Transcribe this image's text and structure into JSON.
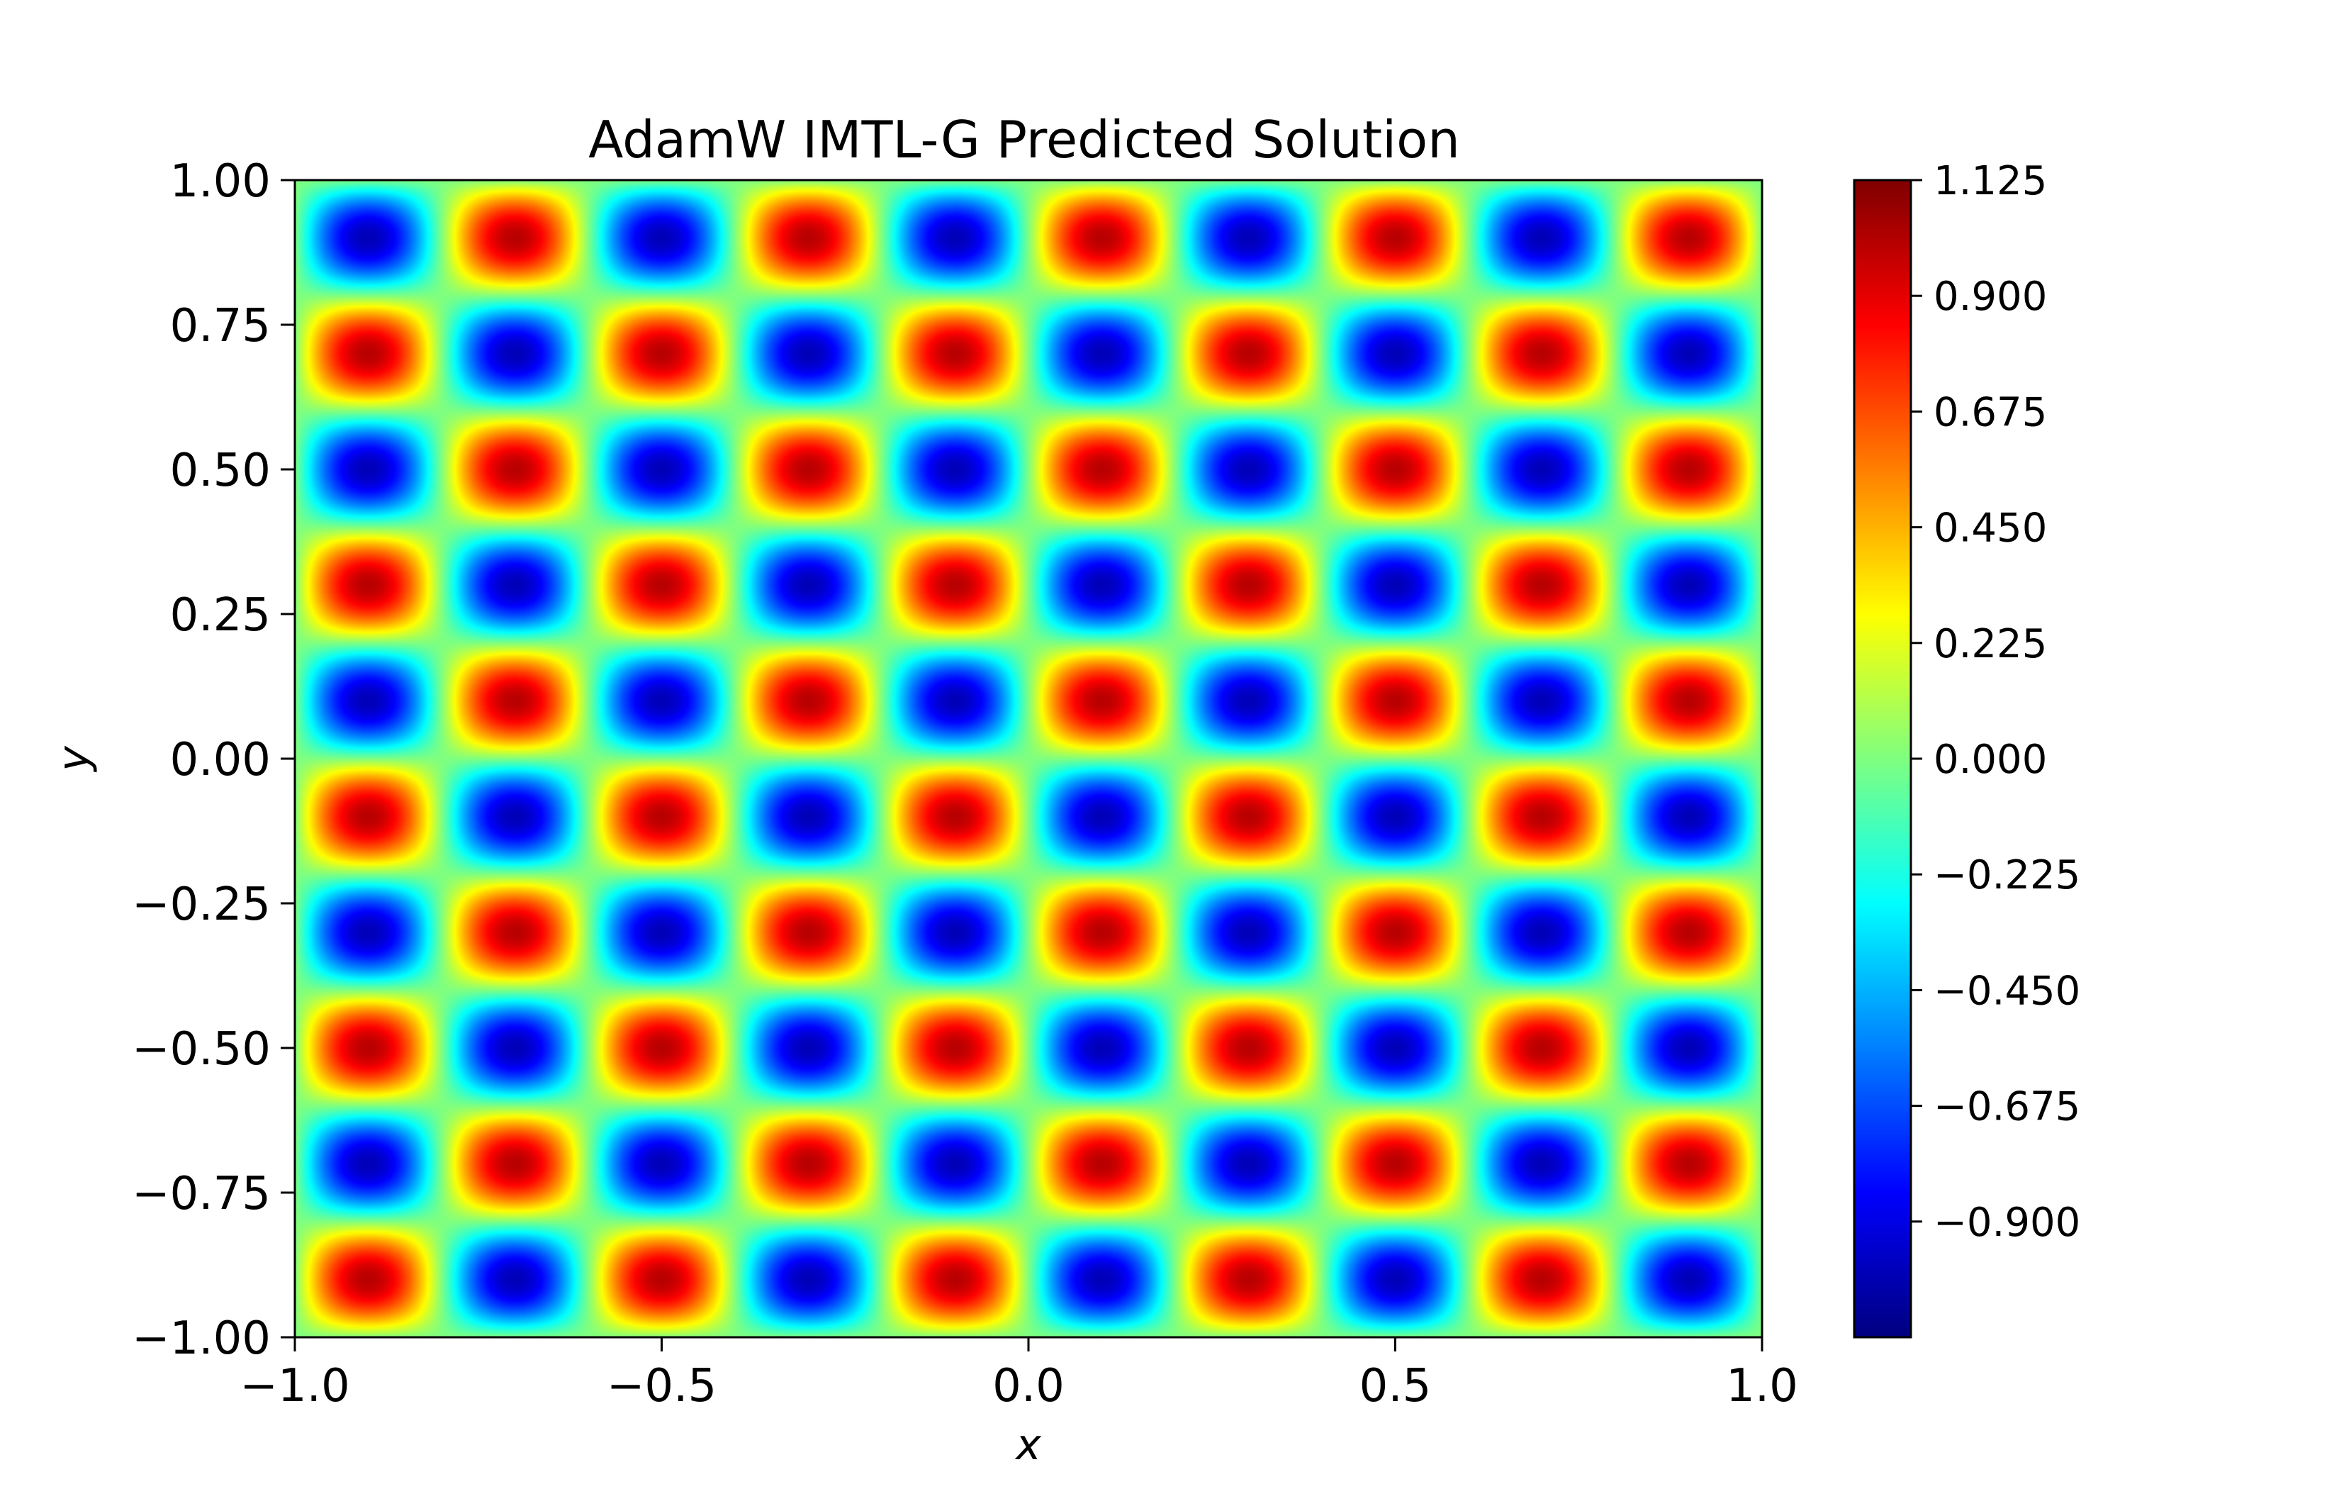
{
  "chart_data": {
    "type": "heatmap",
    "title": "AdamW IMTL-G Predicted Solution",
    "xlabel": "x",
    "ylabel": "y",
    "xlim": [
      -1.0,
      1.0
    ],
    "ylim": [
      -1.0,
      1.0
    ],
    "x_ticks": [
      -1.0,
      -0.5,
      0.0,
      0.5,
      1.0
    ],
    "x_tick_labels": [
      "−1.0",
      "−0.5",
      "0.0",
      "0.5",
      "1.0"
    ],
    "y_ticks": [
      -1.0,
      -0.75,
      -0.5,
      -0.25,
      0.0,
      0.25,
      0.5,
      0.75,
      1.0
    ],
    "y_tick_labels": [
      "−1.00",
      "−0.75",
      "−0.50",
      "−0.25",
      "0.00",
      "0.25",
      "0.50",
      "0.75",
      "1.00"
    ],
    "function": "u(x, y) = sin(5πx) · sin(5πy)",
    "colormap": "jet",
    "color_range": [
      -1.125,
      1.125
    ],
    "colorbar": {
      "ticks": [
        1.125,
        0.9,
        0.675,
        0.45,
        0.225,
        0.0,
        -0.225,
        -0.45,
        -0.675,
        -0.9
      ],
      "tick_labels": [
        "1.125",
        "0.900",
        "0.675",
        "0.450",
        "0.225",
        "0.000",
        "−0.225",
        "−0.450",
        "−0.675",
        "−0.900"
      ]
    },
    "grid": false
  }
}
